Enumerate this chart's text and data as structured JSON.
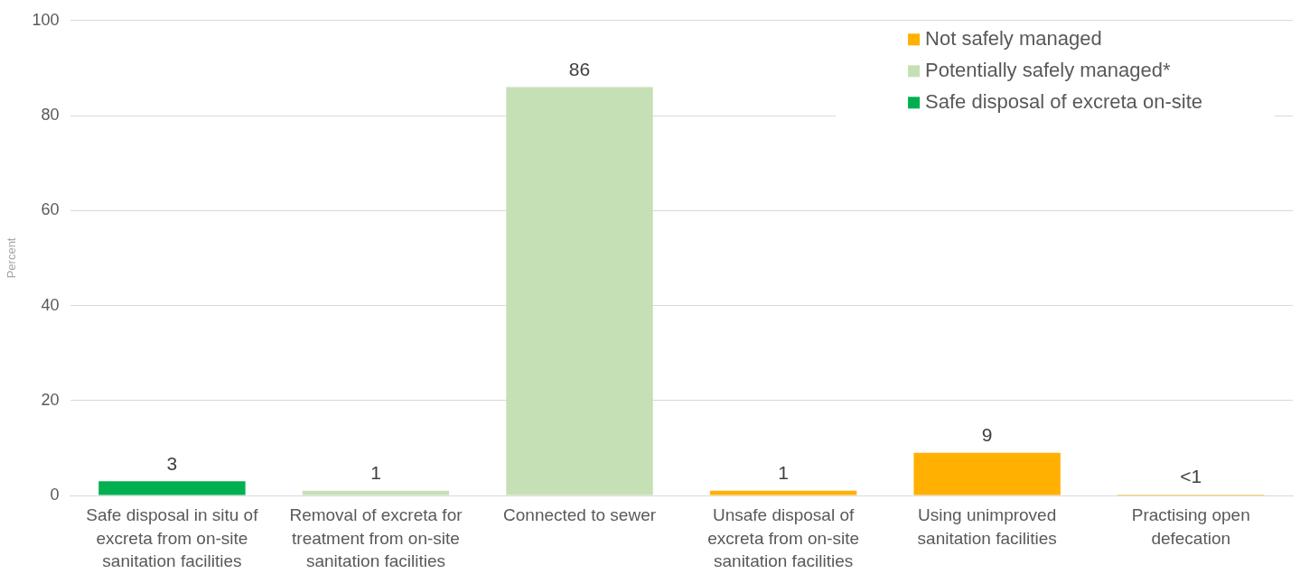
{
  "chart_data": {
    "type": "bar",
    "ylabel": "Percent",
    "categories": [
      "Safe disposal in situ of excreta from on-site sanitation facilities",
      "Removal of excreta for treatment from on-site sanitation facilities",
      "Connected to sewer",
      "Unsafe disposal of excreta from on-site sanitation facilities",
      "Using unimproved sanitation facilities",
      "Practising open defecation"
    ],
    "series": [
      {
        "name": "Not safely managed",
        "color": "#ffb000",
        "values": [
          null,
          null,
          null,
          1,
          9,
          0.2
        ],
        "value_labels": [
          null,
          null,
          null,
          "1",
          "9",
          "<1"
        ]
      },
      {
        "name": "Potentially safely managed*",
        "color": "#c5e0b4",
        "values": [
          null,
          1,
          86,
          null,
          null,
          null
        ],
        "value_labels": [
          null,
          "1",
          "86",
          null,
          null,
          null
        ]
      },
      {
        "name": "Safe disposal of excreta on-site",
        "color": "#00b050",
        "values": [
          3,
          null,
          null,
          null,
          null,
          null
        ],
        "value_labels": [
          "3",
          null,
          null,
          null,
          null,
          null
        ]
      }
    ],
    "ylim": [
      0,
      100
    ],
    "yticks": [
      0,
      20,
      40,
      60,
      80,
      100
    ],
    "grid": "y",
    "legend": "top right"
  }
}
